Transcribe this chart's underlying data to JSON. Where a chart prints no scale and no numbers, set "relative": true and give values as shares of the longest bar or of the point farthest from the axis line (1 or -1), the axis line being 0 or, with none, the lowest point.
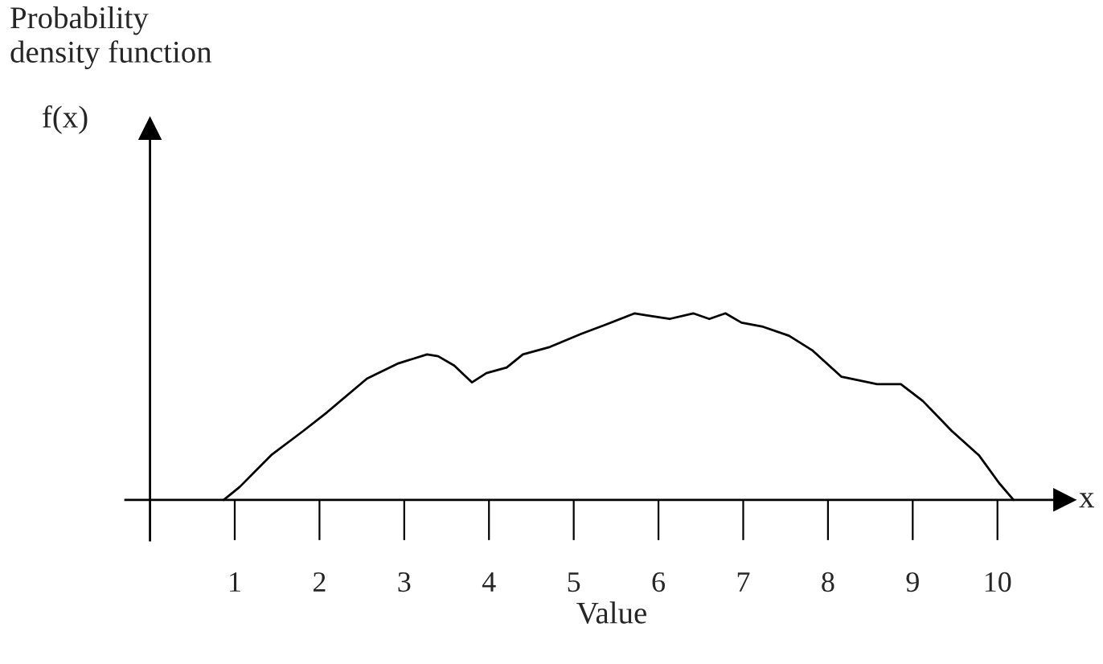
{
  "chart_data": {
    "type": "line",
    "title": "Probability\ndensity function",
    "xlabel": "Value",
    "annotations": [
      "x",
      "f(x)"
    ],
    "relative": true,
    "color": "#000000",
    "marker": "none",
    "line_style": "solid",
    "grid": false,
    "legend": false,
    "x": [
      0.87,
      1.06,
      1.43,
      1.81,
      2.09,
      2.56,
      2.92,
      3.27,
      3.4,
      3.59,
      3.8,
      3.97,
      4.21,
      4.4,
      4.72,
      5.09,
      5.38,
      5.72,
      5.85,
      6.13,
      6.41,
      6.6,
      6.79,
      6.98,
      7.22,
      7.54,
      7.82,
      8.16,
      8.58,
      8.86,
      9.12,
      9.46,
      9.78,
      10.02,
      10.19
    ],
    "values": [
      0,
      0.07,
      0.24,
      0.37,
      0.47,
      0.65,
      0.73,
      0.78,
      0.77,
      0.72,
      0.63,
      0.68,
      0.71,
      0.78,
      0.82,
      0.89,
      0.94,
      1,
      0.99,
      0.97,
      1,
      0.97,
      1,
      0.95,
      0.93,
      0.88,
      0.8,
      0.66,
      0.62,
      0.62,
      0.53,
      0.37,
      0.24,
      0.09,
      0
    ],
    "xlim": [
      -0.29,
      10.79
    ],
    "xticks": [
      1,
      2,
      3,
      4,
      5,
      6,
      7,
      8,
      9,
      10
    ]
  }
}
